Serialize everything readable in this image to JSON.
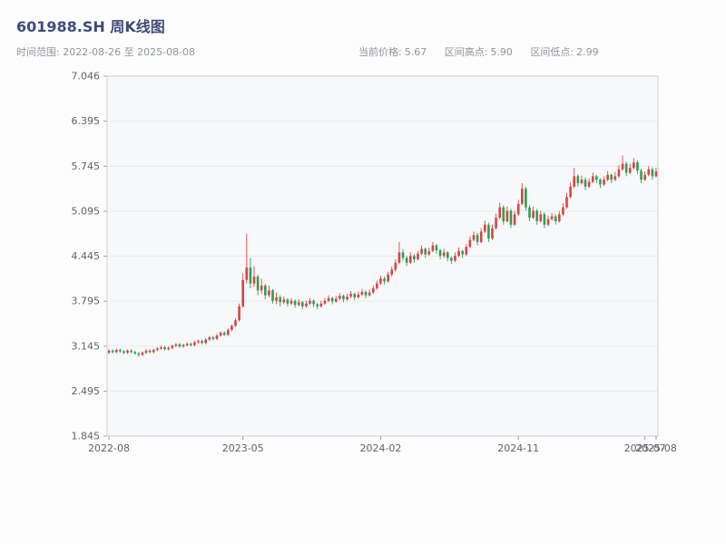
{
  "header": {
    "title": "601988.SH 周K线图",
    "subtitle_left": "时间范围: 2022-08-26 至 2025-08-08",
    "stats": [
      {
        "label": "当前价格:",
        "value": "5.67"
      },
      {
        "label": "区间高点:",
        "value": "5.90"
      },
      {
        "label": "区间低点:",
        "value": "2.99"
      }
    ]
  },
  "colors": {
    "title": "#3e4c78",
    "subtitle": "#8f959e",
    "up": "#d64541",
    "down": "#2f9e4f"
  },
  "chart_data": {
    "type": "candlestick",
    "symbol": "601988.SH",
    "interval": "weekly",
    "title": "601988.SH 周K线图",
    "date_range": [
      "2022-08-26",
      "2025-08-08"
    ],
    "current_price": 5.67,
    "range_high": 5.9,
    "range_low": 2.99,
    "ylim": [
      1.845,
      7.046
    ],
    "y_ticks": [
      "1.845",
      "2.495",
      "3.145",
      "3.795",
      "4.445",
      "5.095",
      "5.745",
      "6.395",
      "7.046"
    ],
    "x_ticks": [
      {
        "index": 0,
        "label": "2022-08"
      },
      {
        "index": 36,
        "label": "2023-05"
      },
      {
        "index": 73,
        "label": "2024-02"
      },
      {
        "index": 110,
        "label": "2024-11"
      },
      {
        "index": 144,
        "label": "2025-07"
      },
      {
        "index": 147,
        "label": "2025-08"
      }
    ],
    "grid": "horizontal-only",
    "legend": "none",
    "up_color": "#d64541",
    "down_color": "#2f9e4f",
    "plot_bg": "#f7f8fa",
    "grid_color": "#e7e9ee",
    "border_color": "#ccd0d6",
    "candles_ohlc": [
      [
        3.05,
        3.1,
        3.03,
        3.08
      ],
      [
        3.08,
        3.1,
        3.04,
        3.06
      ],
      [
        3.06,
        3.11,
        3.04,
        3.09
      ],
      [
        3.09,
        3.11,
        3.05,
        3.07
      ],
      [
        3.07,
        3.09,
        3.03,
        3.05
      ],
      [
        3.05,
        3.1,
        3.03,
        3.08
      ],
      [
        3.08,
        3.1,
        3.04,
        3.06
      ],
      [
        3.06,
        3.08,
        3.02,
        3.04
      ],
      [
        3.04,
        3.06,
        2.99,
        3.02
      ],
      [
        3.02,
        3.07,
        3.0,
        3.05
      ],
      [
        3.05,
        3.1,
        3.03,
        3.08
      ],
      [
        3.08,
        3.1,
        3.04,
        3.06
      ],
      [
        3.06,
        3.11,
        3.04,
        3.09
      ],
      [
        3.09,
        3.13,
        3.07,
        3.11
      ],
      [
        3.11,
        3.15,
        3.09,
        3.13
      ],
      [
        3.13,
        3.15,
        3.08,
        3.1
      ],
      [
        3.1,
        3.14,
        3.08,
        3.12
      ],
      [
        3.12,
        3.17,
        3.1,
        3.15
      ],
      [
        3.15,
        3.19,
        3.13,
        3.17
      ],
      [
        3.17,
        3.19,
        3.12,
        3.14
      ],
      [
        3.14,
        3.18,
        3.12,
        3.16
      ],
      [
        3.16,
        3.2,
        3.14,
        3.18
      ],
      [
        3.18,
        3.2,
        3.14,
        3.16
      ],
      [
        3.16,
        3.22,
        3.14,
        3.2
      ],
      [
        3.2,
        3.24,
        3.18,
        3.22
      ],
      [
        3.22,
        3.24,
        3.17,
        3.19
      ],
      [
        3.19,
        3.26,
        3.17,
        3.24
      ],
      [
        3.24,
        3.29,
        3.22,
        3.27
      ],
      [
        3.27,
        3.29,
        3.23,
        3.25
      ],
      [
        3.25,
        3.32,
        3.23,
        3.3
      ],
      [
        3.3,
        3.36,
        3.28,
        3.34
      ],
      [
        3.34,
        3.36,
        3.29,
        3.31
      ],
      [
        3.31,
        3.4,
        3.29,
        3.38
      ],
      [
        3.38,
        3.46,
        3.36,
        3.44
      ],
      [
        3.44,
        3.55,
        3.42,
        3.52
      ],
      [
        3.52,
        3.76,
        3.5,
        3.72
      ],
      [
        3.72,
        4.2,
        3.7,
        4.1
      ],
      [
        4.1,
        4.77,
        4.05,
        4.28
      ],
      [
        4.28,
        4.42,
        3.98,
        4.05
      ],
      [
        4.05,
        4.3,
        4.0,
        4.15
      ],
      [
        4.15,
        4.18,
        3.88,
        3.95
      ],
      [
        3.95,
        4.12,
        3.9,
        4.02
      ],
      [
        4.02,
        4.05,
        3.82,
        3.88
      ],
      [
        3.88,
        4.02,
        3.85,
        3.95
      ],
      [
        3.95,
        3.97,
        3.76,
        3.8
      ],
      [
        3.8,
        3.92,
        3.75,
        3.85
      ],
      [
        3.85,
        3.88,
        3.72,
        3.78
      ],
      [
        3.78,
        3.86,
        3.75,
        3.82
      ],
      [
        3.82,
        3.84,
        3.72,
        3.76
      ],
      [
        3.76,
        3.84,
        3.74,
        3.8
      ],
      [
        3.8,
        3.82,
        3.7,
        3.74
      ],
      [
        3.74,
        3.82,
        3.72,
        3.78
      ],
      [
        3.78,
        3.8,
        3.68,
        3.72
      ],
      [
        3.72,
        3.8,
        3.7,
        3.76
      ],
      [
        3.76,
        3.84,
        3.74,
        3.8
      ],
      [
        3.8,
        3.82,
        3.71,
        3.75
      ],
      [
        3.75,
        3.77,
        3.68,
        3.72
      ],
      [
        3.72,
        3.8,
        3.7,
        3.76
      ],
      [
        3.76,
        3.84,
        3.74,
        3.8
      ],
      [
        3.8,
        3.88,
        3.78,
        3.84
      ],
      [
        3.84,
        3.86,
        3.75,
        3.79
      ],
      [
        3.79,
        3.87,
        3.77,
        3.83
      ],
      [
        3.83,
        3.91,
        3.81,
        3.87
      ],
      [
        3.87,
        3.89,
        3.78,
        3.82
      ],
      [
        3.82,
        3.9,
        3.8,
        3.86
      ],
      [
        3.86,
        3.94,
        3.84,
        3.9
      ],
      [
        3.9,
        3.92,
        3.81,
        3.85
      ],
      [
        3.85,
        3.93,
        3.83,
        3.89
      ],
      [
        3.89,
        3.97,
        3.87,
        3.93
      ],
      [
        3.93,
        3.95,
        3.84,
        3.88
      ],
      [
        3.88,
        3.96,
        3.86,
        3.92
      ],
      [
        3.92,
        4.02,
        3.9,
        3.98
      ],
      [
        3.98,
        4.09,
        3.96,
        4.05
      ],
      [
        4.05,
        4.16,
        4.03,
        4.12
      ],
      [
        4.12,
        4.15,
        4.04,
        4.08
      ],
      [
        4.08,
        4.22,
        4.06,
        4.18
      ],
      [
        4.18,
        4.3,
        4.15,
        4.25
      ],
      [
        4.25,
        4.4,
        4.22,
        4.35
      ],
      [
        4.35,
        4.65,
        4.33,
        4.5
      ],
      [
        4.5,
        4.55,
        4.38,
        4.42
      ],
      [
        4.42,
        4.45,
        4.3,
        4.35
      ],
      [
        4.35,
        4.5,
        4.33,
        4.45
      ],
      [
        4.45,
        4.48,
        4.35,
        4.4
      ],
      [
        4.4,
        4.52,
        4.38,
        4.48
      ],
      [
        4.48,
        4.6,
        4.46,
        4.55
      ],
      [
        4.55,
        4.57,
        4.42,
        4.47
      ],
      [
        4.47,
        4.57,
        4.45,
        4.52
      ],
      [
        4.52,
        4.65,
        4.5,
        4.6
      ],
      [
        4.6,
        4.62,
        4.48,
        4.53
      ],
      [
        4.53,
        4.55,
        4.4,
        4.45
      ],
      [
        4.45,
        4.55,
        4.42,
        4.5
      ],
      [
        4.5,
        4.52,
        4.37,
        4.42
      ],
      [
        4.42,
        4.44,
        4.33,
        4.38
      ],
      [
        4.38,
        4.5,
        4.36,
        4.45
      ],
      [
        4.45,
        4.57,
        4.43,
        4.52
      ],
      [
        4.52,
        4.54,
        4.42,
        4.47
      ],
      [
        4.47,
        4.62,
        4.45,
        4.58
      ],
      [
        4.58,
        4.73,
        4.56,
        4.68
      ],
      [
        4.68,
        4.8,
        4.66,
        4.75
      ],
      [
        4.75,
        4.78,
        4.6,
        4.65
      ],
      [
        4.65,
        4.85,
        4.63,
        4.8
      ],
      [
        4.8,
        4.96,
        4.78,
        4.9
      ],
      [
        4.9,
        4.93,
        4.65,
        4.7
      ],
      [
        4.7,
        4.9,
        4.68,
        4.85
      ],
      [
        4.85,
        5.06,
        4.83,
        5.0
      ],
      [
        5.0,
        5.22,
        4.98,
        5.15
      ],
      [
        5.15,
        5.18,
        4.9,
        4.95
      ],
      [
        4.95,
        5.16,
        4.93,
        5.1
      ],
      [
        5.1,
        5.13,
        4.85,
        4.9
      ],
      [
        4.9,
        5.1,
        4.88,
        5.05
      ],
      [
        5.05,
        5.26,
        5.03,
        5.2
      ],
      [
        5.2,
        5.5,
        5.18,
        5.42
      ],
      [
        5.42,
        5.45,
        5.1,
        5.15
      ],
      [
        5.15,
        5.18,
        4.95,
        5.0
      ],
      [
        5.0,
        5.16,
        4.98,
        5.1
      ],
      [
        5.1,
        5.13,
        4.9,
        4.95
      ],
      [
        4.95,
        5.1,
        4.93,
        5.05
      ],
      [
        5.05,
        5.08,
        4.85,
        4.9
      ],
      [
        4.9,
        5.03,
        4.88,
        4.98
      ],
      [
        4.98,
        5.07,
        4.96,
        5.02
      ],
      [
        5.02,
        5.05,
        4.9,
        4.95
      ],
      [
        4.95,
        5.1,
        4.93,
        5.05
      ],
      [
        5.05,
        5.21,
        5.03,
        5.15
      ],
      [
        5.15,
        5.36,
        5.13,
        5.3
      ],
      [
        5.3,
        5.51,
        5.28,
        5.45
      ],
      [
        5.45,
        5.72,
        5.43,
        5.6
      ],
      [
        5.6,
        5.63,
        5.45,
        5.5
      ],
      [
        5.5,
        5.61,
        5.48,
        5.55
      ],
      [
        5.55,
        5.58,
        5.4,
        5.45
      ],
      [
        5.45,
        5.57,
        5.43,
        5.52
      ],
      [
        5.52,
        5.65,
        5.5,
        5.6
      ],
      [
        5.6,
        5.62,
        5.5,
        5.55
      ],
      [
        5.55,
        5.57,
        5.43,
        5.48
      ],
      [
        5.48,
        5.6,
        5.46,
        5.55
      ],
      [
        5.55,
        5.67,
        5.53,
        5.62
      ],
      [
        5.62,
        5.64,
        5.5,
        5.55
      ],
      [
        5.55,
        5.66,
        5.53,
        5.6
      ],
      [
        5.6,
        5.76,
        5.58,
        5.7
      ],
      [
        5.7,
        5.9,
        5.68,
        5.78
      ],
      [
        5.78,
        5.81,
        5.6,
        5.65
      ],
      [
        5.65,
        5.78,
        5.63,
        5.72
      ],
      [
        5.72,
        5.86,
        5.7,
        5.8
      ],
      [
        5.8,
        5.83,
        5.63,
        5.68
      ],
      [
        5.68,
        5.71,
        5.5,
        5.55
      ],
      [
        5.55,
        5.67,
        5.53,
        5.62
      ],
      [
        5.62,
        5.75,
        5.6,
        5.7
      ],
      [
        5.7,
        5.73,
        5.55,
        5.6
      ],
      [
        5.6,
        5.72,
        5.58,
        5.67
      ]
    ]
  }
}
